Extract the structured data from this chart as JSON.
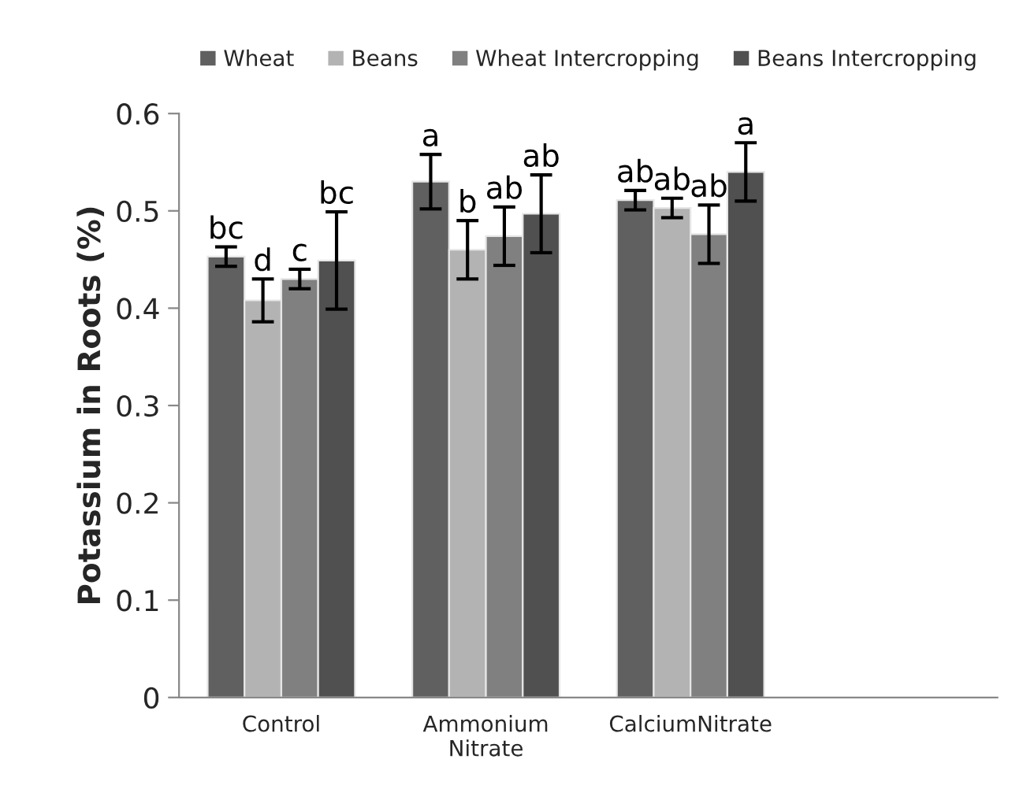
{
  "chart_data": {
    "type": "bar",
    "ylabel": "Potassium in Roots (%)",
    "categories": [
      "Control",
      "Ammonium\nNitrate",
      "CalciumNitrate",
      null
    ],
    "series": [
      {
        "name": "Wheat",
        "color": "#606060",
        "values": [
          0.453,
          0.53,
          0.511,
          null
        ],
        "errors": [
          0.01,
          0.028,
          0.01,
          null
        ],
        "value_labels": [
          "bc",
          "a",
          "ab",
          null
        ]
      },
      {
        "name": "Beans",
        "color": "#b3b3b3",
        "values": [
          0.408,
          0.46,
          0.503,
          null
        ],
        "errors": [
          0.022,
          0.03,
          0.01,
          null
        ],
        "value_labels": [
          "d",
          "b",
          "ab",
          null
        ]
      },
      {
        "name": "Wheat Intercropping",
        "color": "#808080",
        "values": [
          0.43,
          0.474,
          0.476,
          null
        ],
        "errors": [
          0.01,
          0.03,
          0.03,
          null
        ],
        "value_labels": [
          "c",
          "ab",
          "ab",
          null
        ]
      },
      {
        "name": "Beans Intercropping",
        "color": "#505050",
        "values": [
          0.449,
          0.497,
          0.54,
          null
        ],
        "errors": [
          0.05,
          0.04,
          0.03,
          null
        ],
        "value_labels": [
          "bc",
          "ab",
          "a",
          null
        ]
      }
    ],
    "ylim": [
      0,
      0.6
    ],
    "yticks": [
      {
        "value": 0,
        "label": "0"
      },
      0.1,
      0.2,
      0.3,
      0.4,
      0.5,
      0.6
    ],
    "grid": false,
    "legend": "top"
  }
}
